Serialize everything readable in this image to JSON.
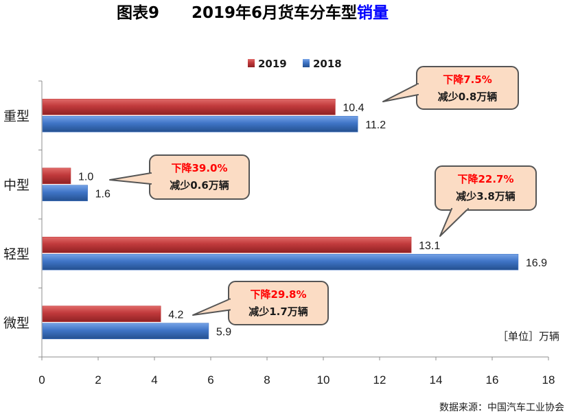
{
  "figure": {
    "label": "图表9",
    "title_main": "2019年6月货车分车型",
    "title_highlight": "销量",
    "unit": "［单位］万辆",
    "source": "数据来源：中国汽车工业协会"
  },
  "colors": {
    "series_2019": "#c0393b",
    "series_2018": "#3f74c6",
    "title_highlight": "#0000ff",
    "callout_fill": "#fbdcc4",
    "callout_stroke": "#555555",
    "callout_red_text": "#ff0000"
  },
  "chart_data": {
    "type": "bar",
    "orientation": "horizontal",
    "categories": [
      "重型",
      "中型",
      "轻型",
      "微型"
    ],
    "series": [
      {
        "name": "2019",
        "values": [
          10.4,
          1.0,
          13.1,
          4.2
        ]
      },
      {
        "name": "2018",
        "values": [
          11.2,
          1.6,
          16.9,
          5.9
        ]
      }
    ],
    "value_labels": {
      "2019": [
        "10.4",
        "1.0",
        "13.1",
        "4.2"
      ],
      "2018": [
        "11.2",
        "1.6",
        "16.9",
        "5.9"
      ]
    },
    "xlim": [
      0,
      18
    ],
    "x_ticks": [
      "0",
      "2",
      "4",
      "6",
      "8",
      "10",
      "12",
      "14",
      "16",
      "18"
    ],
    "legend": [
      "2019",
      "2018"
    ],
    "legend_position": "top",
    "grid": false,
    "annotations": [
      {
        "category": "重型",
        "line1": "下降7.5%",
        "line2": "减少0.8万辆"
      },
      {
        "category": "中型",
        "line1": "下降39.0%",
        "line2": "减少0.6万辆"
      },
      {
        "category": "轻型",
        "line1": "下降22.7%",
        "line2": "减少3.8万辆"
      },
      {
        "category": "微型",
        "line1": "下降29.8%",
        "line2": "减少1.7万辆"
      }
    ]
  }
}
